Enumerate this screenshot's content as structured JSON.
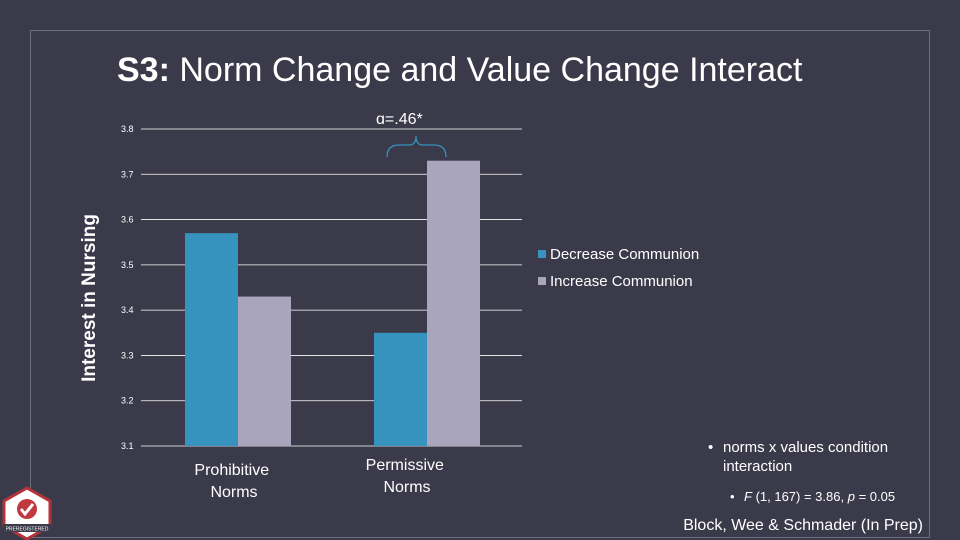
{
  "slide": {
    "title_prefix": "S3:",
    "title_main": "Norm Change and Value Change Interact",
    "citation": "Block, Wee & Schmader (In Prep)",
    "badge_text": "PREREGISTERED"
  },
  "notes": {
    "bullet": "norms x values condition interaction",
    "sub_bullet_prefix": "F",
    "sub_bullet_mid": " (1, 167) = 3.86, ",
    "sub_bullet_p": "p",
    "sub_bullet_suffix": " = 0.05"
  },
  "colors": {
    "background": "#3b3a4a",
    "decrease": "#3593bd",
    "increase": "#a9a5bd",
    "gridline": "#ffffff"
  },
  "chart_data": {
    "type": "bar",
    "ylabel": "Interest in Nursing",
    "ylim": [
      3.1,
      3.8
    ],
    "yticks": [
      "3.8",
      "3.7",
      "3.6",
      "3.5",
      "3.4",
      "3.3",
      "3.2",
      "3.1"
    ],
    "categories": [
      "Prohibitive Norms",
      "Permissive Norms"
    ],
    "series": [
      {
        "name": "Decrease Communion",
        "values": [
          3.57,
          3.35
        ]
      },
      {
        "name": "Increase Communion",
        "values": [
          3.43,
          3.73
        ]
      }
    ],
    "annotation": "ɑ=.46*",
    "legend_position": "right",
    "grid": true
  }
}
